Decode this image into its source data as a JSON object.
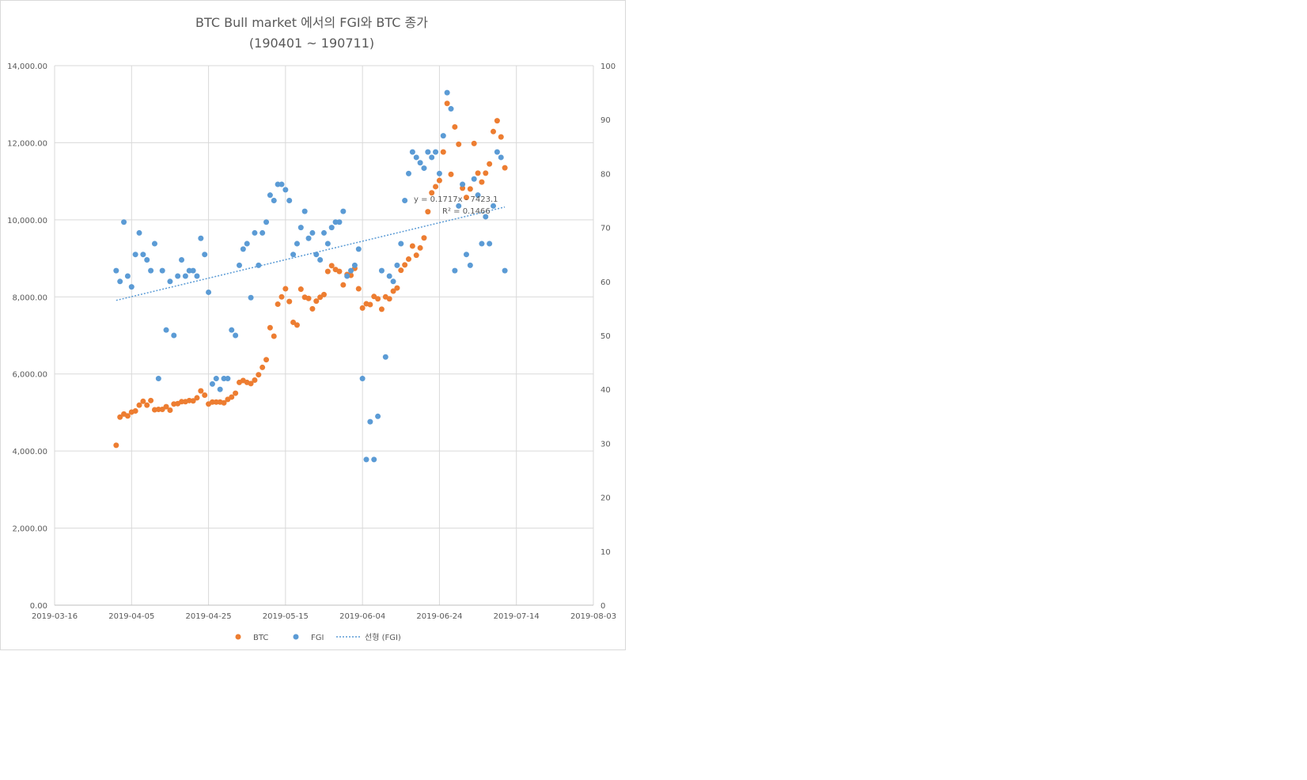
{
  "colors": {
    "btc": "#ED7D31",
    "fgi": "#5B9BD5",
    "trend": "#5B9BD5",
    "grid": "#D9D9D9",
    "text": "#595959"
  },
  "chart_data": {
    "type": "scatter",
    "title": "BTC Bull market 에서의 FGI와 BTC 종가",
    "subtitle": "(190401 ~ 190711)",
    "x_axis": {
      "type": "date",
      "min": "2019-03-16",
      "max": "2019-08-03",
      "tick_labels": [
        "2019-03-16",
        "2019-04-05",
        "2019-04-25",
        "2019-05-15",
        "2019-06-04",
        "2019-06-24",
        "2019-07-14",
        "2019-08-03"
      ]
    },
    "y_axis_left": {
      "min": 0,
      "max": 14000,
      "tick_labels": [
        "0.00",
        "2,000.00",
        "4,000.00",
        "6,000.00",
        "8,000.00",
        "10,000.00",
        "12,000.00",
        "14,000.00"
      ]
    },
    "y_axis_right": {
      "min": 0,
      "max": 100,
      "tick_labels": [
        "0",
        "10",
        "20",
        "30",
        "40",
        "50",
        "60",
        "70",
        "80",
        "90",
        "100"
      ]
    },
    "grid": "vertical and horizontal major gridlines",
    "legend_position": "bottom",
    "legend": [
      "BTC",
      "FGI",
      "선형 (FGI)"
    ],
    "trendline": {
      "series": "FGI",
      "label": "선형 (FGI)",
      "equation": "y = 0.1717x - 7423.1",
      "r_squared": "R² = 0.1466",
      "start": {
        "x": "2019-04-01",
        "y": 56.5
      },
      "end": {
        "x": "2019-07-11",
        "y": 73.8
      }
    },
    "series": [
      {
        "name": "BTC",
        "axis": "left",
        "points": [
          [
            "2019-04-01",
            4150
          ],
          [
            "2019-04-02",
            4880
          ],
          [
            "2019-04-03",
            4960
          ],
          [
            "2019-04-04",
            4910
          ],
          [
            "2019-04-05",
            5010
          ],
          [
            "2019-04-06",
            5040
          ],
          [
            "2019-04-07",
            5190
          ],
          [
            "2019-04-08",
            5290
          ],
          [
            "2019-04-09",
            5190
          ],
          [
            "2019-04-10",
            5310
          ],
          [
            "2019-04-11",
            5070
          ],
          [
            "2019-04-12",
            5080
          ],
          [
            "2019-04-13",
            5080
          ],
          [
            "2019-04-14",
            5150
          ],
          [
            "2019-04-15",
            5060
          ],
          [
            "2019-04-16",
            5220
          ],
          [
            "2019-04-17",
            5230
          ],
          [
            "2019-04-18",
            5280
          ],
          [
            "2019-04-19",
            5280
          ],
          [
            "2019-04-20",
            5310
          ],
          [
            "2019-04-21",
            5300
          ],
          [
            "2019-04-22",
            5380
          ],
          [
            "2019-04-23",
            5560
          ],
          [
            "2019-04-24",
            5450
          ],
          [
            "2019-04-25",
            5220
          ],
          [
            "2019-04-26",
            5270
          ],
          [
            "2019-04-27",
            5270
          ],
          [
            "2019-04-28",
            5270
          ],
          [
            "2019-04-29",
            5250
          ],
          [
            "2019-04-30",
            5340
          ],
          [
            "2019-05-01",
            5400
          ],
          [
            "2019-05-02",
            5500
          ],
          [
            "2019-05-03",
            5780
          ],
          [
            "2019-05-04",
            5830
          ],
          [
            "2019-05-05",
            5780
          ],
          [
            "2019-05-06",
            5750
          ],
          [
            "2019-05-07",
            5840
          ],
          [
            "2019-05-08",
            5980
          ],
          [
            "2019-05-09",
            6170
          ],
          [
            "2019-05-10",
            6370
          ],
          [
            "2019-05-11",
            7200
          ],
          [
            "2019-05-12",
            6980
          ],
          [
            "2019-05-13",
            7810
          ],
          [
            "2019-05-14",
            8000
          ],
          [
            "2019-05-15",
            8210
          ],
          [
            "2019-05-16",
            7880
          ],
          [
            "2019-05-17",
            7340
          ],
          [
            "2019-05-18",
            7270
          ],
          [
            "2019-05-19",
            8200
          ],
          [
            "2019-05-20",
            7990
          ],
          [
            "2019-05-21",
            7960
          ],
          [
            "2019-05-22",
            7690
          ],
          [
            "2019-05-23",
            7890
          ],
          [
            "2019-05-24",
            7990
          ],
          [
            "2019-05-25",
            8060
          ],
          [
            "2019-05-26",
            8660
          ],
          [
            "2019-05-27",
            8810
          ],
          [
            "2019-05-28",
            8710
          ],
          [
            "2019-05-29",
            8660
          ],
          [
            "2019-05-30",
            8310
          ],
          [
            "2019-05-31",
            8580
          ],
          [
            "2019-06-01",
            8560
          ],
          [
            "2019-06-02",
            8740
          ],
          [
            "2019-06-03",
            8210
          ],
          [
            "2019-06-04",
            7710
          ],
          [
            "2019-06-05",
            7820
          ],
          [
            "2019-06-06",
            7800
          ],
          [
            "2019-06-07",
            8010
          ],
          [
            "2019-06-08",
            7950
          ],
          [
            "2019-06-09",
            7680
          ],
          [
            "2019-06-10",
            8000
          ],
          [
            "2019-06-11",
            7950
          ],
          [
            "2019-06-12",
            8150
          ],
          [
            "2019-06-13",
            8230
          ],
          [
            "2019-06-14",
            8690
          ],
          [
            "2019-06-15",
            8830
          ],
          [
            "2019-06-16",
            8980
          ],
          [
            "2019-06-17",
            9320
          ],
          [
            "2019-06-18",
            9080
          ],
          [
            "2019-06-19",
            9270
          ],
          [
            "2019-06-20",
            9530
          ],
          [
            "2019-06-21",
            10210
          ],
          [
            "2019-06-22",
            10700
          ],
          [
            "2019-06-23",
            10860
          ],
          [
            "2019-06-24",
            11020
          ],
          [
            "2019-06-25",
            11760
          ],
          [
            "2019-06-26",
            13020
          ],
          [
            "2019-06-27",
            11180
          ],
          [
            "2019-06-28",
            12410
          ],
          [
            "2019-06-29",
            11960
          ],
          [
            "2019-06-30",
            10820
          ],
          [
            "2019-07-01",
            10580
          ],
          [
            "2019-07-02",
            10800
          ],
          [
            "2019-07-03",
            11980
          ],
          [
            "2019-07-04",
            11210
          ],
          [
            "2019-07-05",
            10980
          ],
          [
            "2019-07-06",
            11210
          ],
          [
            "2019-07-07",
            11450
          ],
          [
            "2019-07-08",
            12290
          ],
          [
            "2019-07-09",
            12570
          ],
          [
            "2019-07-10",
            12150
          ],
          [
            "2019-07-11",
            11350
          ]
        ]
      },
      {
        "name": "FGI",
        "axis": "right",
        "points": [
          [
            "2019-04-01",
            62
          ],
          [
            "2019-04-02",
            60
          ],
          [
            "2019-04-03",
            71
          ],
          [
            "2019-04-04",
            61
          ],
          [
            "2019-04-05",
            59
          ],
          [
            "2019-04-06",
            65
          ],
          [
            "2019-04-07",
            69
          ],
          [
            "2019-04-08",
            65
          ],
          [
            "2019-04-09",
            64
          ],
          [
            "2019-04-10",
            62
          ],
          [
            "2019-04-11",
            67
          ],
          [
            "2019-04-12",
            42
          ],
          [
            "2019-04-13",
            62
          ],
          [
            "2019-04-14",
            51
          ],
          [
            "2019-04-15",
            60
          ],
          [
            "2019-04-16",
            50
          ],
          [
            "2019-04-17",
            61
          ],
          [
            "2019-04-18",
            64
          ],
          [
            "2019-04-19",
            61
          ],
          [
            "2019-04-20",
            62
          ],
          [
            "2019-04-21",
            62
          ],
          [
            "2019-04-22",
            61
          ],
          [
            "2019-04-23",
            68
          ],
          [
            "2019-04-24",
            65
          ],
          [
            "2019-04-25",
            58
          ],
          [
            "2019-04-26",
            41
          ],
          [
            "2019-04-27",
            42
          ],
          [
            "2019-04-28",
            40
          ],
          [
            "2019-04-29",
            42
          ],
          [
            "2019-04-30",
            42
          ],
          [
            "2019-05-01",
            51
          ],
          [
            "2019-05-02",
            50
          ],
          [
            "2019-05-03",
            63
          ],
          [
            "2019-05-04",
            66
          ],
          [
            "2019-05-05",
            67
          ],
          [
            "2019-05-06",
            57
          ],
          [
            "2019-05-07",
            69
          ],
          [
            "2019-05-08",
            63
          ],
          [
            "2019-05-09",
            69
          ],
          [
            "2019-05-10",
            71
          ],
          [
            "2019-05-11",
            76
          ],
          [
            "2019-05-12",
            75
          ],
          [
            "2019-05-13",
            78
          ],
          [
            "2019-05-14",
            78
          ],
          [
            "2019-05-15",
            77
          ],
          [
            "2019-05-16",
            75
          ],
          [
            "2019-05-17",
            65
          ],
          [
            "2019-05-18",
            67
          ],
          [
            "2019-05-19",
            70
          ],
          [
            "2019-05-20",
            73
          ],
          [
            "2019-05-21",
            68
          ],
          [
            "2019-05-22",
            69
          ],
          [
            "2019-05-23",
            65
          ],
          [
            "2019-05-24",
            64
          ],
          [
            "2019-05-25",
            69
          ],
          [
            "2019-05-26",
            67
          ],
          [
            "2019-05-27",
            70
          ],
          [
            "2019-05-28",
            71
          ],
          [
            "2019-05-29",
            71
          ],
          [
            "2019-05-30",
            73
          ],
          [
            "2019-05-31",
            61
          ],
          [
            "2019-06-01",
            62
          ],
          [
            "2019-06-02",
            63
          ],
          [
            "2019-06-03",
            66
          ],
          [
            "2019-06-04",
            42
          ],
          [
            "2019-06-05",
            27
          ],
          [
            "2019-06-06",
            34
          ],
          [
            "2019-06-07",
            27
          ],
          [
            "2019-06-08",
            35
          ],
          [
            "2019-06-09",
            62
          ],
          [
            "2019-06-10",
            46
          ],
          [
            "2019-06-11",
            61
          ],
          [
            "2019-06-12",
            60
          ],
          [
            "2019-06-13",
            63
          ],
          [
            "2019-06-14",
            67
          ],
          [
            "2019-06-15",
            75
          ],
          [
            "2019-06-16",
            80
          ],
          [
            "2019-06-17",
            84
          ],
          [
            "2019-06-18",
            83
          ],
          [
            "2019-06-19",
            82
          ],
          [
            "2019-06-20",
            81
          ],
          [
            "2019-06-21",
            84
          ],
          [
            "2019-06-22",
            83
          ],
          [
            "2019-06-23",
            84
          ],
          [
            "2019-06-24",
            80
          ],
          [
            "2019-06-25",
            87
          ],
          [
            "2019-06-26",
            95
          ],
          [
            "2019-06-27",
            92
          ],
          [
            "2019-06-28",
            62
          ],
          [
            "2019-06-29",
            74
          ],
          [
            "2019-06-30",
            78
          ],
          [
            "2019-07-01",
            65
          ],
          [
            "2019-07-02",
            63
          ],
          [
            "2019-07-03",
            79
          ],
          [
            "2019-07-04",
            76
          ],
          [
            "2019-07-05",
            67
          ],
          [
            "2019-07-06",
            72
          ],
          [
            "2019-07-07",
            67
          ],
          [
            "2019-07-08",
            74
          ],
          [
            "2019-07-09",
            84
          ],
          [
            "2019-07-10",
            83
          ],
          [
            "2019-07-11",
            62
          ]
        ]
      }
    ]
  }
}
